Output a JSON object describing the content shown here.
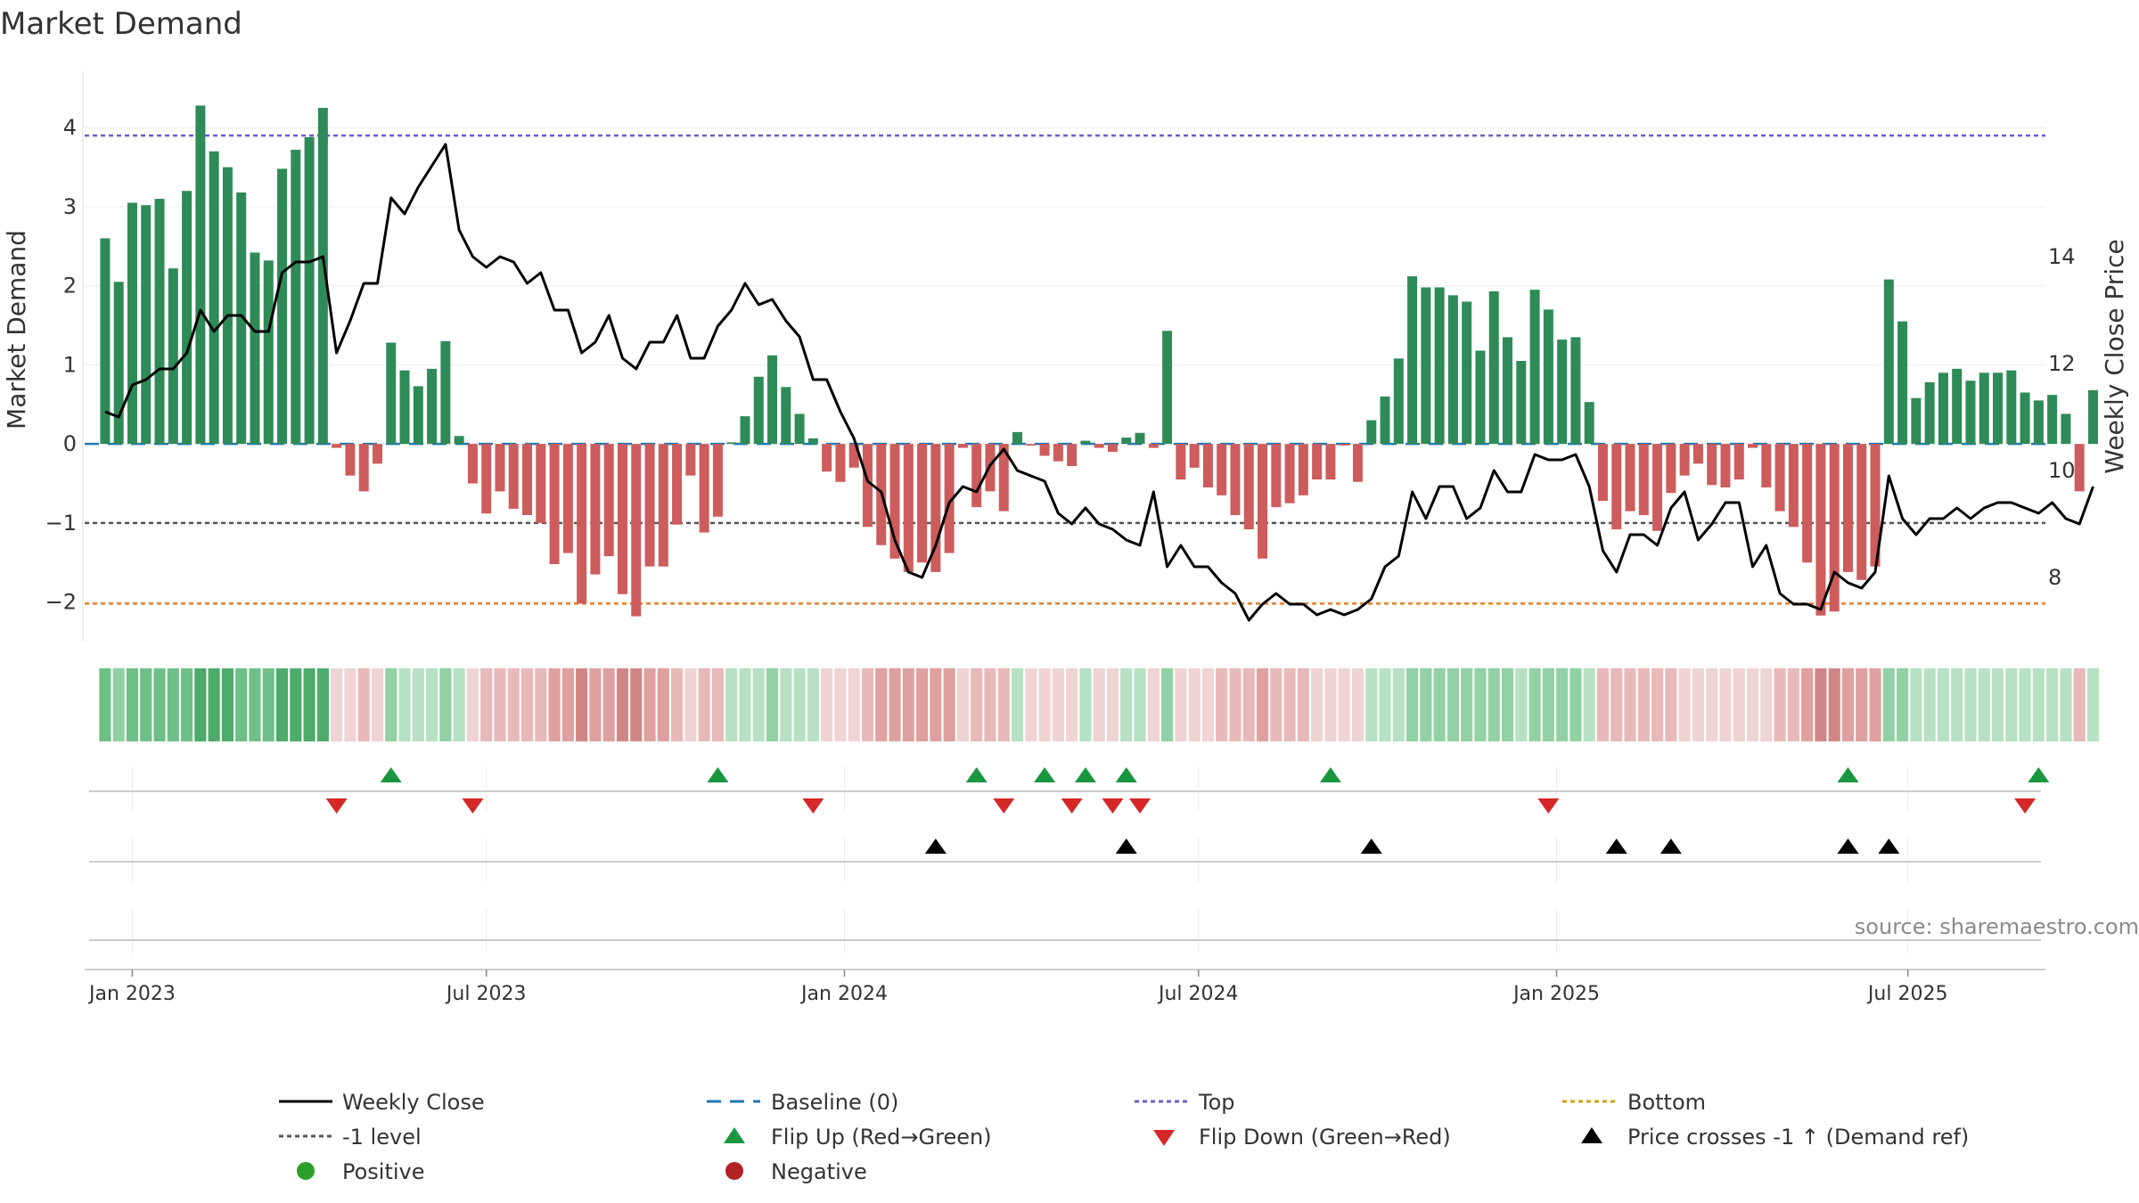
{
  "chart_data": {
    "type": "bar",
    "title": "Market Demand",
    "ylabel_left": "Market Demand",
    "ylabel_right": "Weekly Close Price",
    "ylim_left": [
      -2.5,
      4.6
    ],
    "ylim_right": [
      6.8,
      17.3
    ],
    "yticks_left": [
      "−2",
      "−1",
      "0",
      "1",
      "2",
      "3",
      "4"
    ],
    "yticks_right": [
      "8",
      "10",
      "12",
      "14"
    ],
    "x_ticks": [
      "Jan 2023",
      "Jul 2023",
      "Jan 2024",
      "Jul 2024",
      "Jan 2025",
      "Jul 2025"
    ],
    "x_range_weeks": [
      -1.5,
      142.5
    ],
    "x_tick_weeks": [
      2,
      28,
      54.3,
      80.3,
      106.6,
      132.4
    ],
    "reference_levels": {
      "top": 3.9,
      "baseline": 0,
      "minus_one": -1,
      "bottom": -2.02
    },
    "demand_values": [
      2.6,
      2.05,
      3.05,
      3.02,
      3.1,
      2.22,
      3.2,
      4.28,
      3.7,
      3.5,
      3.18,
      2.42,
      2.32,
      3.48,
      3.72,
      3.88,
      4.25,
      -0.05,
      -0.4,
      -0.6,
      -0.25,
      1.28,
      0.93,
      0.73,
      0.95,
      1.3,
      0.1,
      -0.5,
      -0.88,
      -0.6,
      -0.82,
      -0.9,
      -1.0,
      -1.52,
      -1.38,
      -2.02,
      -1.65,
      -1.42,
      -1.9,
      -2.18,
      -1.55,
      -1.55,
      -1.02,
      -0.4,
      -1.12,
      -0.92,
      0.02,
      0.35,
      0.85,
      1.12,
      0.72,
      0.38,
      0.07,
      -0.35,
      -0.48,
      -0.3,
      -1.05,
      -1.28,
      -1.45,
      -1.62,
      -1.5,
      -1.62,
      -1.38,
      -0.05,
      -0.8,
      -0.6,
      -0.85,
      0.15,
      -0.02,
      -0.15,
      -0.22,
      -0.28,
      0.04,
      -0.05,
      -0.1,
      0.08,
      0.14,
      -0.05,
      1.43,
      -0.45,
      -0.3,
      -0.55,
      -0.65,
      -0.9,
      -1.08,
      -1.45,
      -0.8,
      -0.75,
      -0.65,
      -0.45,
      -0.45,
      -0.02,
      -0.48,
      0.3,
      0.6,
      1.08,
      2.12,
      1.98,
      1.98,
      1.88,
      1.8,
      1.18,
      1.93,
      1.35,
      1.05,
      1.95,
      1.7,
      1.32,
      1.35,
      0.53,
      -0.72,
      -1.08,
      -0.85,
      -0.9,
      -1.1,
      -0.62,
      -0.4,
      -0.25,
      -0.52,
      -0.55,
      -0.45,
      -0.05,
      -0.55,
      -0.85,
      -1.05,
      -1.5,
      -2.17,
      -2.12,
      -1.62,
      -1.72,
      -1.55,
      2.08,
      1.55,
      0.58,
      0.78,
      0.9,
      0.95,
      0.8,
      0.9,
      0.9,
      0.93,
      0.65,
      0.55,
      0.62,
      0.38,
      -0.6,
      0.68
    ],
    "weekly_close": [
      11.1,
      11.0,
      11.6,
      11.7,
      11.9,
      11.9,
      12.2,
      13.0,
      12.6,
      12.9,
      12.9,
      12.6,
      12.6,
      13.7,
      13.9,
      13.9,
      14.0,
      12.2,
      12.8,
      13.5,
      13.5,
      15.1,
      14.8,
      15.3,
      15.7,
      16.1,
      14.5,
      14.0,
      13.8,
      14.0,
      13.9,
      13.5,
      13.7,
      13.0,
      13.0,
      12.2,
      12.4,
      12.9,
      12.1,
      11.9,
      12.4,
      12.4,
      12.9,
      12.1,
      12.1,
      12.7,
      13.0,
      13.5,
      13.1,
      13.2,
      12.8,
      12.5,
      11.7,
      11.7,
      11.1,
      10.6,
      9.8,
      9.6,
      8.7,
      8.1,
      8.0,
      8.6,
      9.4,
      9.7,
      9.6,
      10.1,
      10.4,
      10.0,
      9.9,
      9.8,
      9.2,
      9.0,
      9.3,
      9.0,
      8.9,
      8.7,
      8.6,
      9.6,
      8.2,
      8.6,
      8.2,
      8.2,
      7.9,
      7.7,
      7.2,
      7.5,
      7.7,
      7.5,
      7.5,
      7.3,
      7.4,
      7.3,
      7.4,
      7.6,
      8.2,
      8.4,
      9.6,
      9.1,
      9.7,
      9.7,
      9.1,
      9.3,
      10.0,
      9.6,
      9.6,
      10.3,
      10.2,
      10.2,
      10.3,
      9.7,
      8.5,
      8.1,
      8.8,
      8.8,
      8.6,
      9.3,
      9.6,
      8.7,
      9.0,
      9.4,
      9.4,
      8.2,
      8.6,
      7.7,
      7.5,
      7.5,
      7.4,
      8.1,
      7.9,
      7.8,
      8.1,
      9.9,
      9.1,
      8.8,
      9.1,
      9.1,
      9.3,
      9.1,
      9.3,
      9.4,
      9.4,
      9.3,
      9.2,
      9.4,
      9.1,
      9.0,
      9.7
    ],
    "flip_up_weeks": [
      21,
      45,
      64,
      69,
      72,
      75,
      90,
      128,
      142
    ],
    "flip_down_weeks": [
      17,
      27,
      52,
      66,
      71,
      74,
      76,
      106,
      141
    ],
    "price_cross_weeks": [
      61,
      75,
      93,
      111,
      115,
      128,
      131
    ],
    "legend": {
      "weekly_close": "Weekly Close",
      "baseline": "Baseline (0)",
      "top": "Top",
      "bottom": "Bottom",
      "minus_one": "-1 level",
      "flip_up": "Flip Up (Red→Green)",
      "flip_down": "Flip Down (Green→Red)",
      "price_cross": "Price crosses -1 ↑ (Demand ref)",
      "positive": "Positive",
      "negative": "Negative"
    },
    "source": "source: sharemaestro.com",
    "colors": {
      "positive_bar": "#2e8b57",
      "negative_bar": "#cd5c5c",
      "price_line": "#000000",
      "top_line": "#6a5acd",
      "bottom_line": "#e6802a",
      "minus_one_line": "#555555",
      "baseline_line": "#1f77b4",
      "flip_up": "#1a9641",
      "flip_down": "#d62728",
      "price_cross": "#000000",
      "positive_dot": "#2ca02c",
      "negative_dot": "#b22222"
    }
  }
}
